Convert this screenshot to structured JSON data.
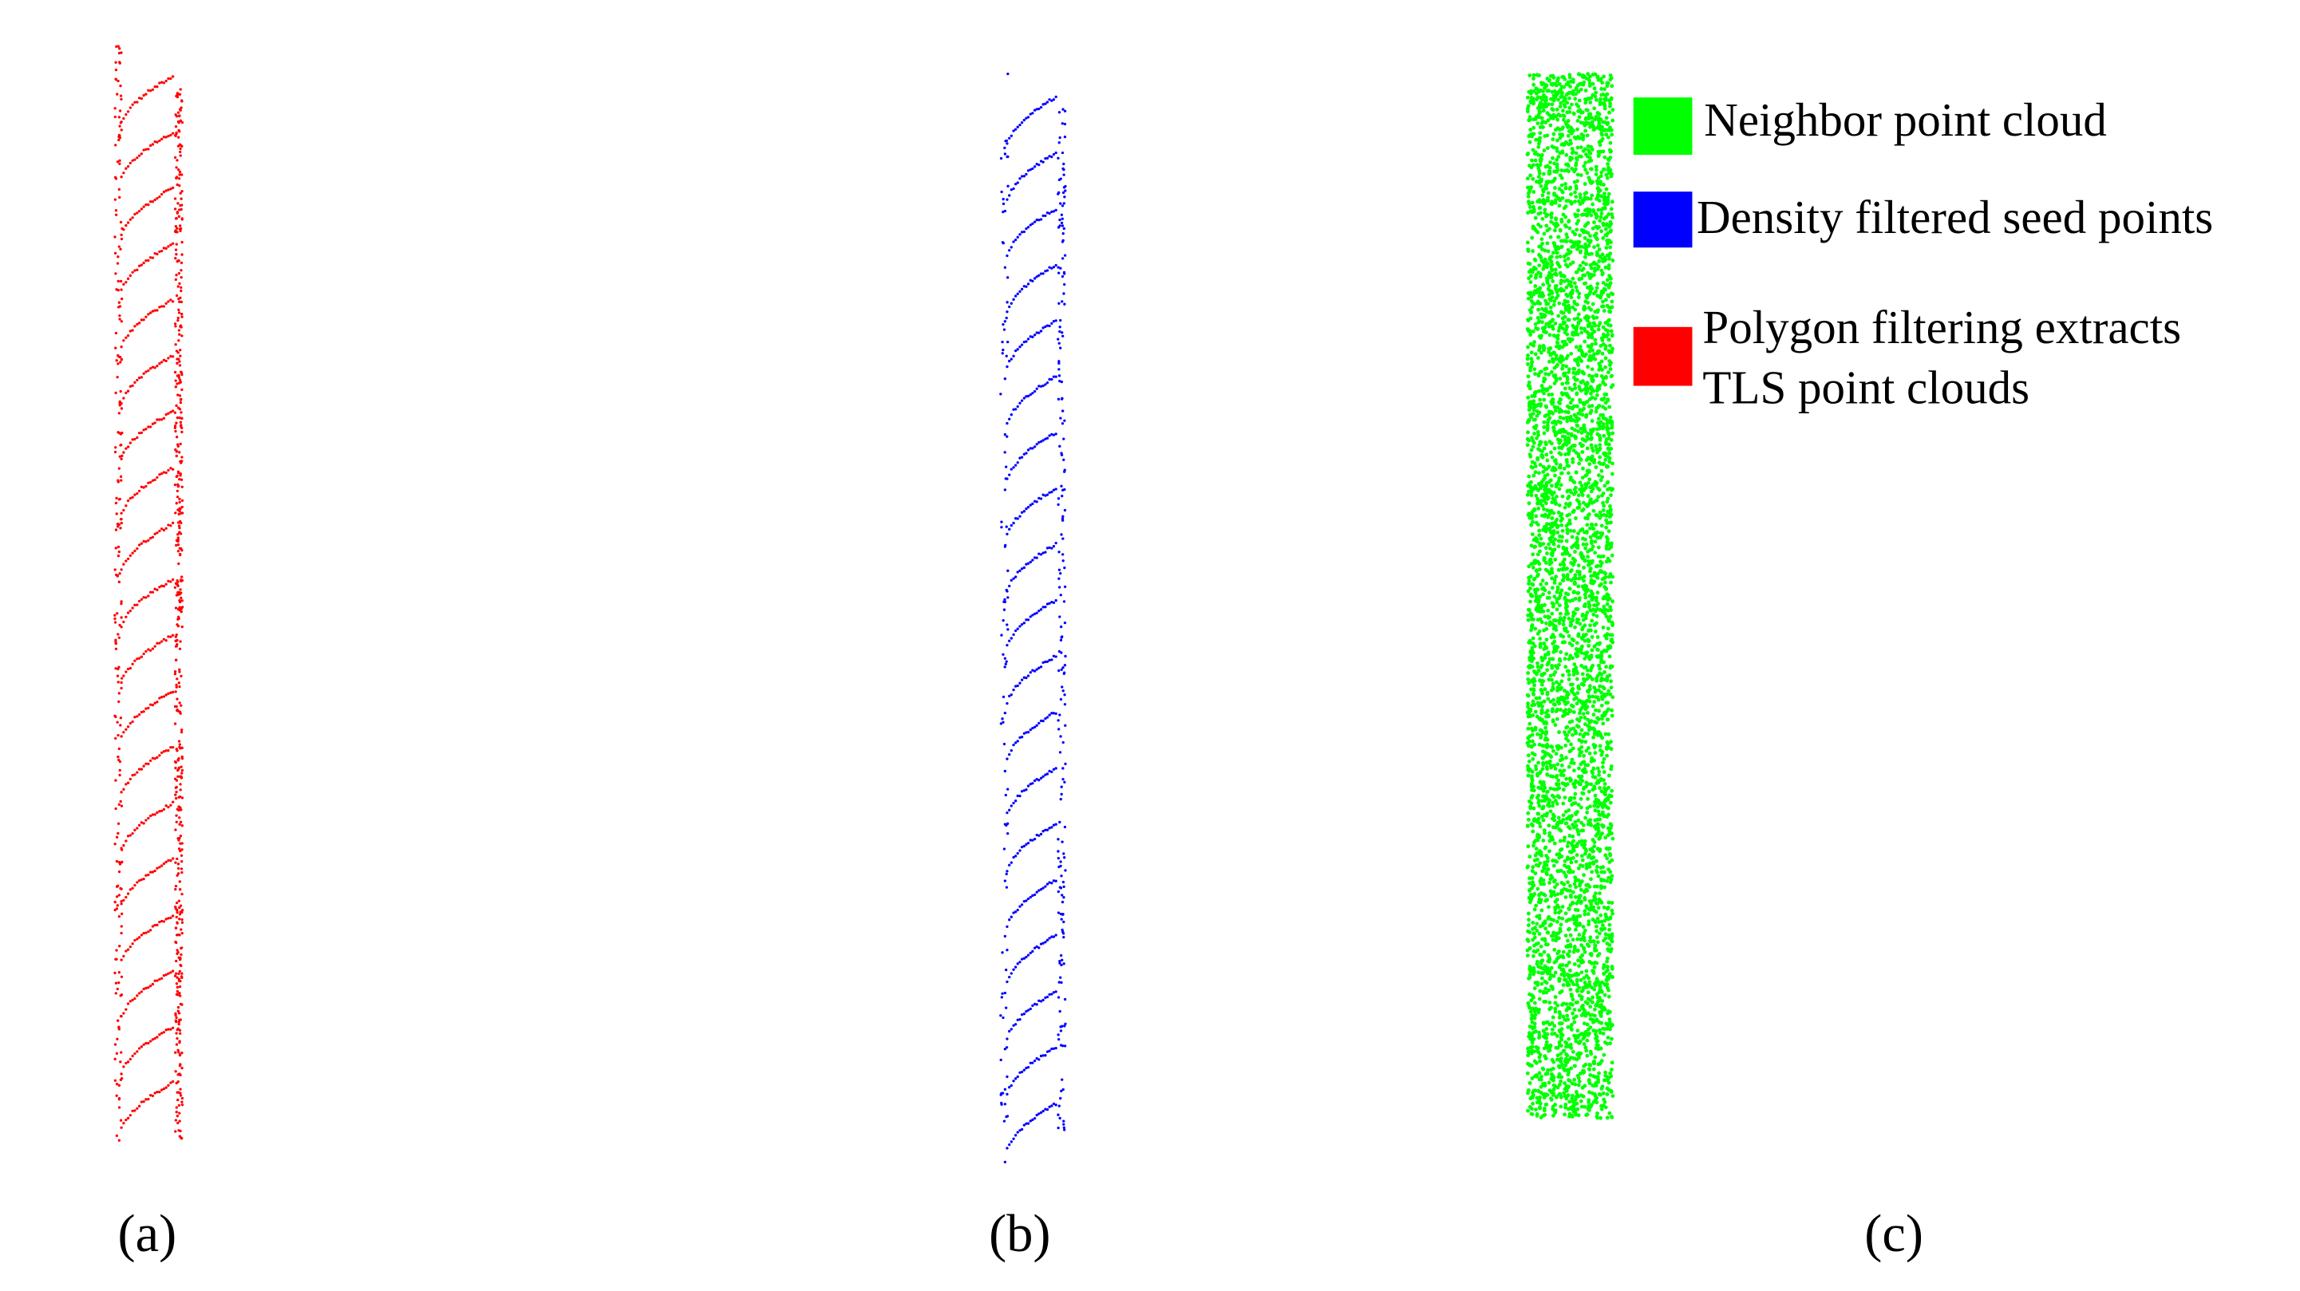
{
  "legend": {
    "items": [
      {
        "label": [
          "Neighbor point cloud"
        ],
        "color": "#00ff00"
      },
      {
        "label": [
          "Density filtered seed points"
        ],
        "color": "#0000ff"
      },
      {
        "label": [
          "Polygon filtering extracts",
          "TLS point clouds"
        ],
        "color": "#ff0000"
      }
    ]
  },
  "panels": [
    {
      "label": "(a)"
    },
    {
      "label": "(b)"
    },
    {
      "label": "(c)"
    }
  ]
}
